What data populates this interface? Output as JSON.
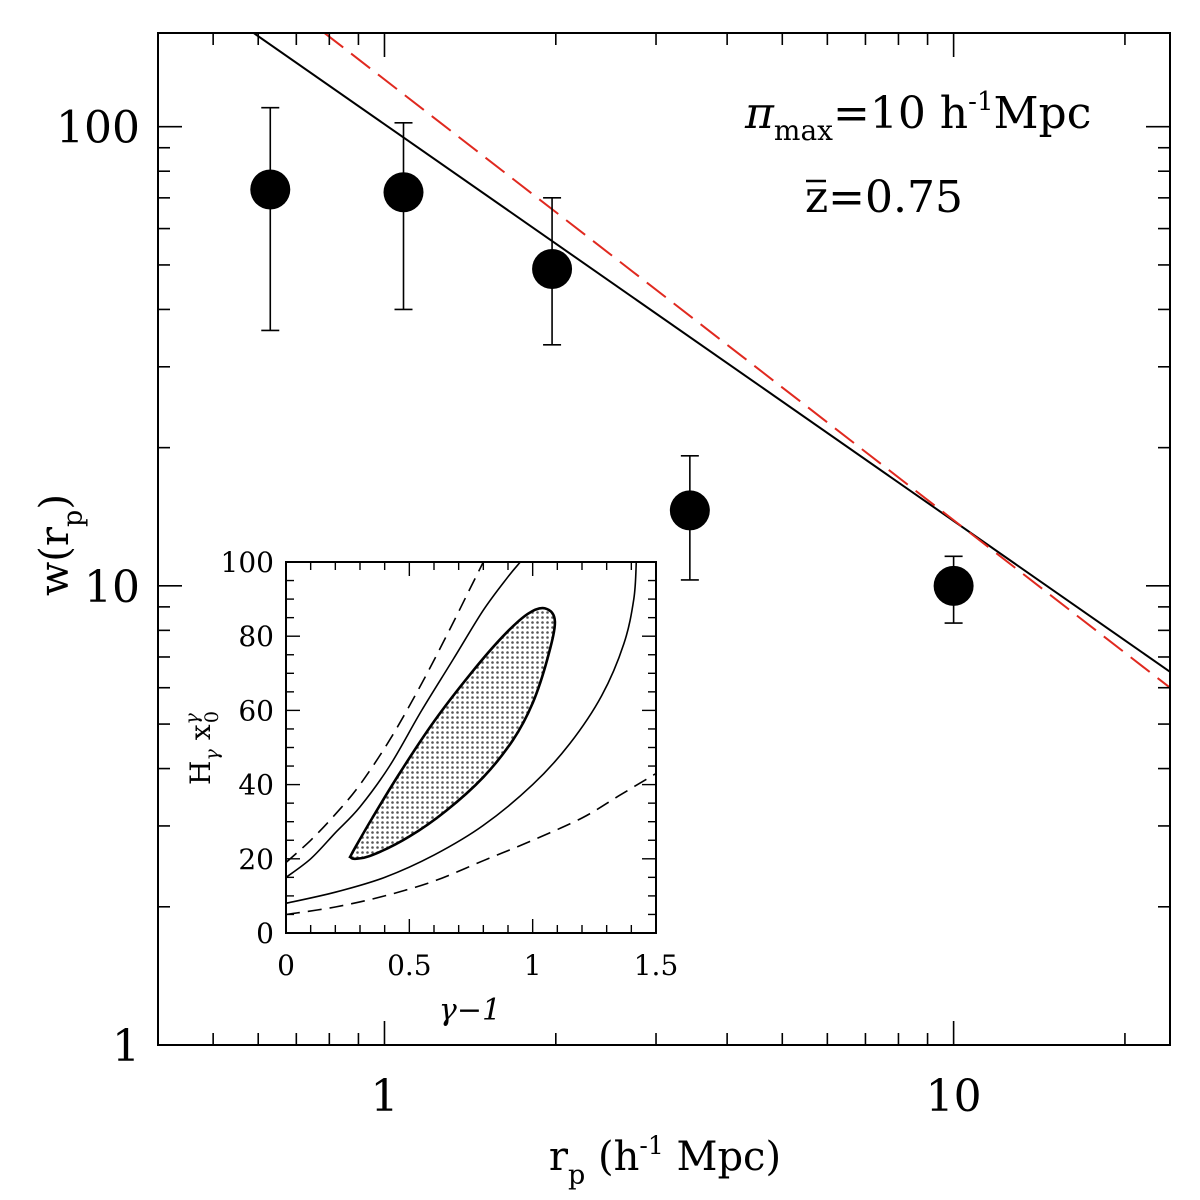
{
  "chart_data": [
    {
      "type": "scatter",
      "scale": "log-log",
      "xlabel_parts": {
        "r": "r",
        "sub": "p",
        "open": " (h",
        "sup": "-1",
        "close": " Mpc)"
      },
      "ylabel_parts": {
        "w": "w(r",
        "sub": "p",
        "close": ")"
      },
      "xlim": [
        0.4,
        24
      ],
      "ylim": [
        1,
        160
      ],
      "x_ticks": [
        {
          "value": 1,
          "label": "1"
        },
        {
          "value": 10,
          "label": "10"
        }
      ],
      "y_ticks": [
        {
          "value": 1,
          "label": "1"
        },
        {
          "value": 10,
          "label": "10"
        },
        {
          "value": 100,
          "label": "100"
        }
      ],
      "annotation": {
        "pi": "π",
        "pi_sub": "max",
        "pi_rest": "=10  h",
        "pi_sup": "-1",
        "pi_unit": "Mpc",
        "z_line": "z=0.75"
      },
      "points": [
        {
          "x": 0.63,
          "y": 73,
          "ylo": 36,
          "yhi": 110
        },
        {
          "x": 1.08,
          "y": 72,
          "ylo": 40,
          "yhi": 102
        },
        {
          "x": 1.97,
          "y": 49,
          "ylo": 33.5,
          "yhi": 70
        },
        {
          "x": 3.44,
          "y": 14.6,
          "ylo": 10.3,
          "yhi": 19.2
        },
        {
          "x": 10.0,
          "y": 10.0,
          "ylo": 8.3,
          "yhi": 11.6
        }
      ],
      "series_lines": [
        {
          "name": "black-fit",
          "color": "#000000",
          "dash": "solid",
          "points": [
            [
              0.455,
              200
            ],
            [
              24,
              6.5
            ]
          ]
        },
        {
          "name": "red-fit",
          "color": "#e0291f",
          "dash": "dashed",
          "points": [
            [
              0.455,
              270
            ],
            [
              24,
              6.0
            ]
          ]
        }
      ]
    },
    {
      "type": "contour",
      "xlabel": "γ−1",
      "ylabel_parts": {
        "h": "H",
        "hsub": "γ",
        "x": " x",
        "xsup": "γ",
        "xsub": "0"
      },
      "xlim": [
        0,
        1.5
      ],
      "ylim": [
        0,
        100
      ],
      "x_ticks": [
        {
          "value": 0,
          "label": "0"
        },
        {
          "value": 0.5,
          "label": "0.5"
        },
        {
          "value": 1,
          "label": "1"
        },
        {
          "value": 1.5,
          "label": "1.5"
        }
      ],
      "y_ticks": [
        {
          "value": 0,
          "label": "0"
        },
        {
          "value": 20,
          "label": "20"
        },
        {
          "value": 40,
          "label": "40"
        },
        {
          "value": 60,
          "label": "60"
        },
        {
          "value": 80,
          "label": "80"
        },
        {
          "value": 100,
          "label": "100"
        }
      ],
      "contours": [
        {
          "name": "1-sigma-filled",
          "dash": "solid",
          "closed": true,
          "fill": true,
          "points": [
            [
              0.26,
              20.5
            ],
            [
              0.28,
              20.0
            ],
            [
              0.35,
              21
            ],
            [
              0.5,
              26
            ],
            [
              0.65,
              33
            ],
            [
              0.8,
              42
            ],
            [
              0.92,
              52
            ],
            [
              1.0,
              62
            ],
            [
              1.06,
              74
            ],
            [
              1.09,
              84
            ],
            [
              1.05,
              87.5
            ],
            [
              0.98,
              86
            ],
            [
              0.88,
              80
            ],
            [
              0.75,
              70
            ],
            [
              0.6,
              57
            ],
            [
              0.46,
              43
            ],
            [
              0.35,
              31
            ],
            [
              0.28,
              23
            ],
            [
              0.26,
              20.5
            ]
          ]
        },
        {
          "name": "2-sigma-upper",
          "dash": "solid",
          "closed": false,
          "points": [
            [
              0,
              15
            ],
            [
              0.1,
              20
            ],
            [
              0.2,
              27
            ],
            [
              0.3,
              34
            ],
            [
              0.42,
              45
            ],
            [
              0.55,
              60
            ],
            [
              0.68,
              74
            ],
            [
              0.8,
              87
            ],
            [
              0.9,
              96
            ],
            [
              0.95,
              100
            ]
          ]
        },
        {
          "name": "2-sigma-lower",
          "dash": "solid",
          "closed": false,
          "points": [
            [
              0,
              8
            ],
            [
              0.2,
              11
            ],
            [
              0.4,
              15
            ],
            [
              0.6,
              21
            ],
            [
              0.8,
              29
            ],
            [
              1.0,
              40
            ],
            [
              1.15,
              51
            ],
            [
              1.28,
              64
            ],
            [
              1.37,
              78
            ],
            [
              1.41,
              90
            ],
            [
              1.42,
              100
            ]
          ]
        },
        {
          "name": "3-sigma-upper",
          "dash": "dashed",
          "closed": false,
          "points": [
            [
              0,
              19
            ],
            [
              0.1,
              25
            ],
            [
              0.2,
              32
            ],
            [
              0.3,
              40
            ],
            [
              0.42,
              52
            ],
            [
              0.54,
              66
            ],
            [
              0.65,
              80
            ],
            [
              0.74,
              92
            ],
            [
              0.8,
              100
            ]
          ]
        },
        {
          "name": "3-sigma-lower",
          "dash": "dashed",
          "closed": false,
          "points": [
            [
              0,
              5
            ],
            [
              0.2,
              7
            ],
            [
              0.4,
              10
            ],
            [
              0.6,
              14
            ],
            [
              0.8,
              19.5
            ],
            [
              1.0,
              25
            ],
            [
              1.2,
              31
            ],
            [
              1.35,
              37
            ],
            [
              1.5,
              43
            ]
          ]
        }
      ]
    }
  ]
}
